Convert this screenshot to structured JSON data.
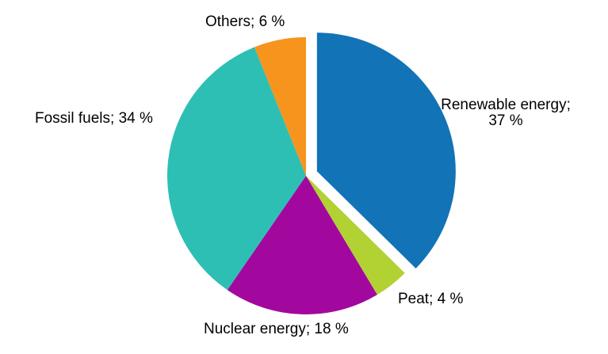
{
  "figure": {
    "background": "#ffffff",
    "text_color": "#000000"
  },
  "chart_data": {
    "type": "pie",
    "title": "",
    "value_unit": "%",
    "start_angle_deg": 0,
    "direction": "clockwise",
    "legend": "none",
    "labels_position": "outside",
    "slices": [
      {
        "label": "Renewable energy",
        "value": 37,
        "display": "Renewable energy; 37 %",
        "color": "#1273b6",
        "exploded": true
      },
      {
        "label": "Peat",
        "value": 4,
        "display": "Peat; 4 %",
        "color": "#b2d234",
        "exploded": false
      },
      {
        "label": "Nuclear energy",
        "value": 18,
        "display": "Nuclear energy; 18 %",
        "color": "#a2089e",
        "exploded": false
      },
      {
        "label": "Fossil fuels",
        "value": 34,
        "display": "Fossil fuels; 34 %",
        "color": "#2dbfb4",
        "exploded": false
      },
      {
        "label": "Others",
        "value": 6,
        "display": "Others; 6 %",
        "color": "#f7941d",
        "exploded": false
      }
    ]
  }
}
